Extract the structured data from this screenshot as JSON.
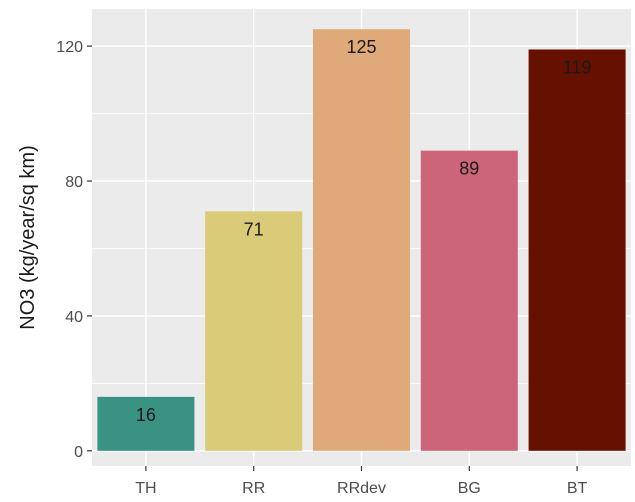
{
  "chart_data": {
    "type": "bar",
    "title": "",
    "xlabel": "",
    "ylabel": "NO3 (kg/year/sq km)",
    "categories": [
      "TH",
      "RR",
      "RRdev",
      "BG",
      "BT"
    ],
    "values": [
      16,
      71,
      125,
      89,
      119
    ],
    "data_labels": [
      "16",
      "71",
      "125",
      "89",
      "119"
    ],
    "bar_colors": [
      "#3a9382",
      "#dacb78",
      "#dfa97a",
      "#cc6577",
      "#661100"
    ],
    "ylim": [
      -4.5,
      131
    ],
    "yticks": [
      0,
      40,
      80,
      120
    ],
    "ytick_labels": [
      "0",
      "40",
      "80",
      "120"
    ],
    "grid": true,
    "panel_background": "#ebebeb",
    "grid_color": "#ffffff",
    "legend": "none"
  }
}
